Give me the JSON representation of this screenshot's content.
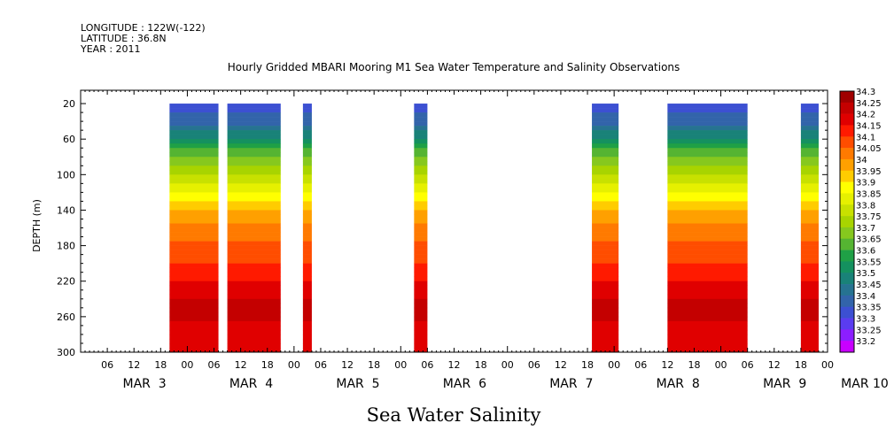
{
  "header": {
    "longitude": "LONGITUDE : 122W(-122)",
    "latitude": "LATITUDE : 36.8N",
    "year": "YEAR : 2011"
  },
  "chart_data": {
    "type": "heatmap",
    "title": "Hourly Gridded MBARI Mooring M1 Sea Water Temperature and Salinity Observations",
    "xlabel": "Sea Water Salinity",
    "ylabel": "DEPTH (m)",
    "x_range_hours": [
      0,
      168
    ],
    "x_origin_label": "MAR 3 00",
    "ylim": [
      300,
      5
    ],
    "y_ticks": [
      20,
      60,
      100,
      140,
      180,
      220,
      260,
      300
    ],
    "x_hour_ticks": [
      {
        "h": 6,
        "label": "06"
      },
      {
        "h": 12,
        "label": "12"
      },
      {
        "h": 18,
        "label": "18"
      },
      {
        "h": 24,
        "label": "00"
      },
      {
        "h": 30,
        "label": "06"
      },
      {
        "h": 36,
        "label": "12"
      },
      {
        "h": 42,
        "label": "18"
      },
      {
        "h": 48,
        "label": "00"
      },
      {
        "h": 54,
        "label": "06"
      },
      {
        "h": 60,
        "label": "12"
      },
      {
        "h": 66,
        "label": "18"
      },
      {
        "h": 72,
        "label": "00"
      },
      {
        "h": 78,
        "label": "06"
      },
      {
        "h": 84,
        "label": "12"
      },
      {
        "h": 90,
        "label": "18"
      },
      {
        "h": 96,
        "label": "00"
      },
      {
        "h": 102,
        "label": "06"
      },
      {
        "h": 108,
        "label": "12"
      },
      {
        "h": 114,
        "label": "18"
      },
      {
        "h": 120,
        "label": "00"
      },
      {
        "h": 126,
        "label": "06"
      },
      {
        "h": 132,
        "label": "12"
      },
      {
        "h": 138,
        "label": "18"
      },
      {
        "h": 144,
        "label": "00"
      },
      {
        "h": 150,
        "label": "06"
      },
      {
        "h": 156,
        "label": "12"
      },
      {
        "h": 162,
        "label": "18"
      },
      {
        "h": 168,
        "label": "00"
      }
    ],
    "x_day_labels": [
      {
        "h": 6,
        "label": "MAR  3"
      },
      {
        "h": 30,
        "label": "MAR  4"
      },
      {
        "h": 54,
        "label": "MAR  5"
      },
      {
        "h": 78,
        "label": "MAR  6"
      },
      {
        "h": 102,
        "label": "MAR  7"
      },
      {
        "h": 126,
        "label": "MAR  8"
      },
      {
        "h": 150,
        "label": "MAR  9"
      },
      {
        "h": 168,
        "label": "MAR 10"
      }
    ],
    "colorbar": {
      "levels": [
        "34.3",
        "34.25",
        "34.2",
        "34.15",
        "34.1",
        "34.05",
        "34",
        "33.95",
        "33.9",
        "33.85",
        "33.8",
        "33.75",
        "33.7",
        "33.65",
        "33.6",
        "33.55",
        "33.5",
        "33.45",
        "33.4",
        "33.35",
        "33.3",
        "33.25",
        "33.2"
      ],
      "colors": [
        "#a00000",
        "#c40000",
        "#e00000",
        "#ff1a00",
        "#ff4d00",
        "#ff7a00",
        "#ffa000",
        "#ffcc00",
        "#ffff00",
        "#e6f000",
        "#c8e100",
        "#a8d400",
        "#86c81e",
        "#55b432",
        "#1fa046",
        "#14915f",
        "#198278",
        "#267391",
        "#3264aa",
        "#3c50d2",
        "#5a3cf0",
        "#8c1eff",
        "#c800ff"
      ]
    },
    "data_blocks": [
      {
        "start_h": 20,
        "end_h": 31
      },
      {
        "start_h": 33,
        "end_h": 45
      },
      {
        "start_h": 50,
        "end_h": 52
      },
      {
        "start_h": 75,
        "end_h": 78
      },
      {
        "start_h": 115,
        "end_h": 121
      },
      {
        "start_h": 132,
        "end_h": 150
      },
      {
        "start_h": 162,
        "end_h": 166
      }
    ],
    "salinity_profile": [
      {
        "depth": 20,
        "value": 33.34
      },
      {
        "depth": 40,
        "value": 33.4
      },
      {
        "depth": 60,
        "value": 33.52
      },
      {
        "depth": 70,
        "value": 33.62
      },
      {
        "depth": 85,
        "value": 33.7
      },
      {
        "depth": 100,
        "value": 33.78
      },
      {
        "depth": 115,
        "value": 33.85
      },
      {
        "depth": 130,
        "value": 33.92
      },
      {
        "depth": 145,
        "value": 34.0
      },
      {
        "depth": 165,
        "value": 34.05
      },
      {
        "depth": 190,
        "value": 34.1
      },
      {
        "depth": 210,
        "value": 34.15
      },
      {
        "depth": 230,
        "value": 34.2
      },
      {
        "depth": 250,
        "value": 34.24
      },
      {
        "depth": 270,
        "value": 34.22
      },
      {
        "depth": 300,
        "value": 34.18
      }
    ]
  }
}
